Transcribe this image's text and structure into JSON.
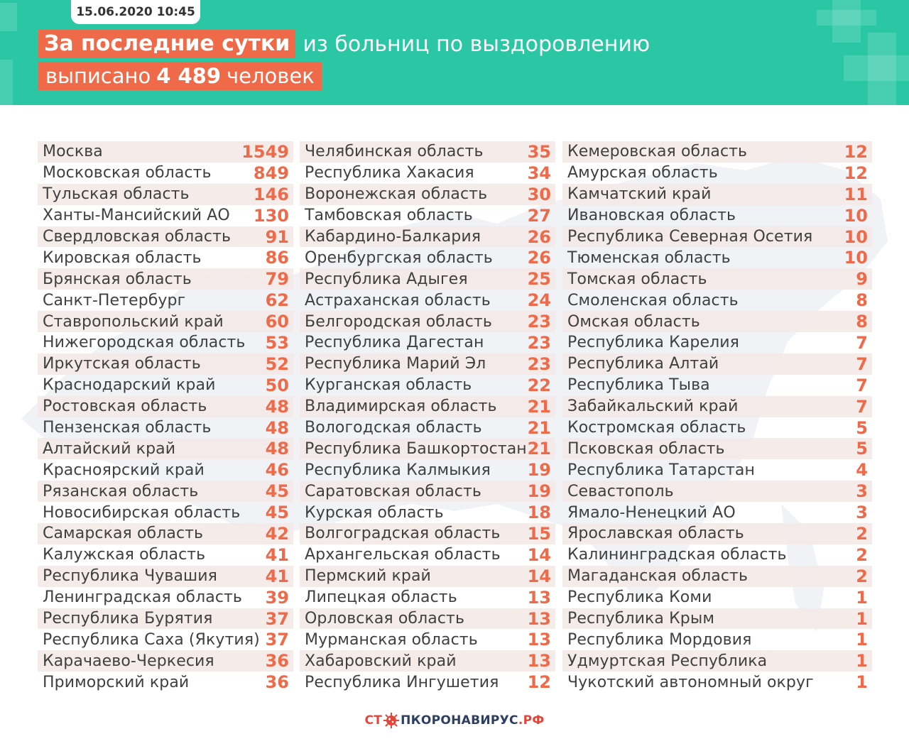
{
  "header": {
    "date": "15.06.2020 10:45",
    "highlight": "За последние сутки",
    "line1_rest": "из больниц по выздоровлению",
    "line2_pre": "выписано",
    "line2_num": "4 489",
    "line2_post": "человек"
  },
  "colors": {
    "header_bg": "#2bc6a3",
    "accent": "#ee6a49",
    "text": "#404040",
    "footer_navy": "#2d3e63",
    "footer_red": "#e2463a"
  },
  "columns": [
    [
      {
        "name": "Москва",
        "value": "1549"
      },
      {
        "name": "Московская область",
        "value": "849"
      },
      {
        "name": "Тульская область",
        "value": "146"
      },
      {
        "name": "Ханты-Мансийский АО",
        "value": "130"
      },
      {
        "name": "Свердловская область",
        "value": "91"
      },
      {
        "name": "Кировская область",
        "value": "86"
      },
      {
        "name": "Брянская область",
        "value": "79"
      },
      {
        "name": "Санкт-Петербург",
        "value": "62"
      },
      {
        "name": "Ставропольский край",
        "value": "60"
      },
      {
        "name": "Нижегородская область",
        "value": "53"
      },
      {
        "name": "Иркутская область",
        "value": "52"
      },
      {
        "name": "Краснодарский край",
        "value": "50"
      },
      {
        "name": "Ростовская область",
        "value": "48"
      },
      {
        "name": "Пензенская область",
        "value": "48"
      },
      {
        "name": "Алтайский край",
        "value": "48"
      },
      {
        "name": "Красноярский край",
        "value": "46"
      },
      {
        "name": "Рязанская область",
        "value": "45"
      },
      {
        "name": "Новосибирская область",
        "value": "45"
      },
      {
        "name": "Самарская область",
        "value": "42"
      },
      {
        "name": "Калужская область",
        "value": "41"
      },
      {
        "name": "Республика Чувашия",
        "value": "41"
      },
      {
        "name": "Ленинградская область",
        "value": "39"
      },
      {
        "name": "Республика Бурятия",
        "value": "37"
      },
      {
        "name": "Республика Саха (Якутия)",
        "value": "37"
      },
      {
        "name": "Карачаево-Черкесия",
        "value": "36"
      },
      {
        "name": "Приморский край",
        "value": "36"
      }
    ],
    [
      {
        "name": "Челябинская область",
        "value": "35"
      },
      {
        "name": "Республика Хакасия",
        "value": "34"
      },
      {
        "name": "Воронежская область",
        "value": "30"
      },
      {
        "name": "Тамбовская область",
        "value": "27"
      },
      {
        "name": "Кабардино-Балкария",
        "value": "26"
      },
      {
        "name": "Оренбургская область",
        "value": "26"
      },
      {
        "name": "Республика Адыгея",
        "value": "25"
      },
      {
        "name": "Астраханская область",
        "value": "24"
      },
      {
        "name": "Белгородская область",
        "value": "23"
      },
      {
        "name": "Республика Дагестан",
        "value": "23"
      },
      {
        "name": "Республика Марий Эл",
        "value": "23"
      },
      {
        "name": "Курганская область",
        "value": "22"
      },
      {
        "name": "Владимирская область",
        "value": "21"
      },
      {
        "name": "Вологодская область",
        "value": "21"
      },
      {
        "name": "Республика Башкортостан",
        "value": "21"
      },
      {
        "name": "Республика Калмыкия",
        "value": "19"
      },
      {
        "name": "Саратовская область",
        "value": "19"
      },
      {
        "name": "Курская область",
        "value": "18"
      },
      {
        "name": "Волгоградская область",
        "value": "15"
      },
      {
        "name": "Архангельская область",
        "value": "14"
      },
      {
        "name": "Пермский край",
        "value": "14"
      },
      {
        "name": "Липецкая область",
        "value": "13"
      },
      {
        "name": "Орловская область",
        "value": "13"
      },
      {
        "name": "Мурманская область",
        "value": "13"
      },
      {
        "name": "Хабаровский край",
        "value": "13"
      },
      {
        "name": "Республика Ингушетия",
        "value": "12"
      }
    ],
    [
      {
        "name": "Кемеровская область",
        "value": "12"
      },
      {
        "name": "Амурская область",
        "value": "12"
      },
      {
        "name": "Камчатский край",
        "value": "11"
      },
      {
        "name": "Ивановская область",
        "value": "10"
      },
      {
        "name": "Республика Северная Осетия",
        "value": "10"
      },
      {
        "name": "Тюменская область",
        "value": "10"
      },
      {
        "name": "Томская область",
        "value": "9"
      },
      {
        "name": "Смоленская область",
        "value": "8"
      },
      {
        "name": "Омская область",
        "value": "8"
      },
      {
        "name": "Республика Карелия",
        "value": "7"
      },
      {
        "name": "Республика Алтай",
        "value": "7"
      },
      {
        "name": "Республика Тыва",
        "value": "7"
      },
      {
        "name": "Забайкальский край",
        "value": "7"
      },
      {
        "name": "Костромская область",
        "value": "5"
      },
      {
        "name": "Псковская область",
        "value": "5"
      },
      {
        "name": "Республика Татарстан",
        "value": "4"
      },
      {
        "name": "Севастополь",
        "value": "3"
      },
      {
        "name": "Ямало-Ненецкий АО",
        "value": "3"
      },
      {
        "name": "Ярославская область",
        "value": "2"
      },
      {
        "name": "Калининградская область",
        "value": "2"
      },
      {
        "name": "Магаданская область",
        "value": "2"
      },
      {
        "name": "Республика Коми",
        "value": "1"
      },
      {
        "name": "Республика Крым",
        "value": "1"
      },
      {
        "name": "Республика Мордовия",
        "value": "1"
      },
      {
        "name": "Удмуртская Республика",
        "value": "1"
      },
      {
        "name": "Чукотский автономный округ",
        "value": "1"
      }
    ]
  ],
  "footer": {
    "logo_part1": "СТ",
    "logo_part2": "ПКОРОНАВИРУС",
    "logo_part3": ".РФ",
    "logo_icon": "virus-icon"
  }
}
